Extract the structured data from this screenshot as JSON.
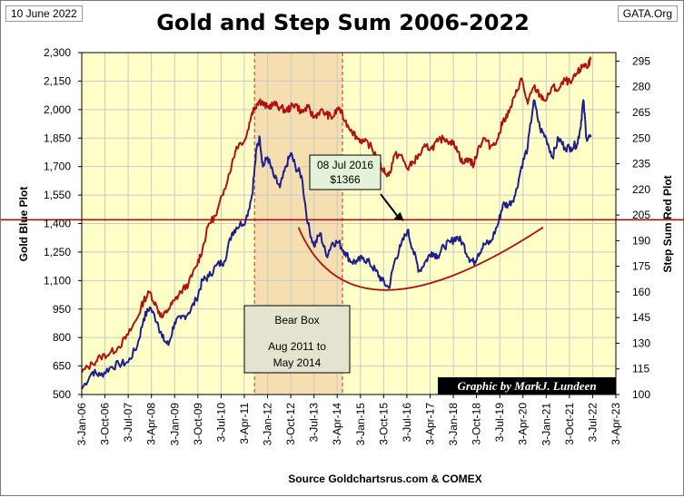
{
  "header": {
    "date": "10 June 2022",
    "site": "GATA.Org",
    "title": "Gold and Step Sum 2006-2022"
  },
  "footer": {
    "source": "Source  Goldchartsrus.com  & COMEX"
  },
  "colors": {
    "plot_bg": "#ffffc8",
    "gold_line": "#1f1f8c",
    "step_sum_line": "#b01010",
    "reference_line": "#b01010",
    "bear_box_fill": "#f5dfb0",
    "annotation_box": "#e3f2d9",
    "credit_bg": "#000000"
  },
  "chart_data": {
    "type": "line",
    "title": "Gold and Step Sum 2006-2022",
    "x_tick_labels": [
      "3-Jan-06",
      "3-Oct-06",
      "3-Jul-07",
      "3-Apr-08",
      "3-Jan-09",
      "3-Oct-09",
      "3-Jul-10",
      "3-Apr-11",
      "3-Jan-12",
      "3-Oct-12",
      "3-Jul-13",
      "3-Apr-14",
      "3-Jan-15",
      "3-Oct-15",
      "3-Jul-16",
      "3-Apr-17",
      "3-Jan-18",
      "3-Oct-18",
      "3-Jul-19",
      "3-Apr-20",
      "3-Jan-21",
      "3-Oct-21",
      "3-Jul-22",
      "3-Apr-23"
    ],
    "x_range": [
      2006.0,
      2023.25
    ],
    "left_axis": {
      "label": "Gold    Blue Plot",
      "ylim": [
        500,
        2300
      ],
      "ticks": [
        "500",
        "650",
        "800",
        "950",
        "1,100",
        "1,250",
        "1,400",
        "1,550",
        "1,700",
        "1,850",
        "2,000",
        "2,150",
        "2,300"
      ]
    },
    "right_axis": {
      "label": "Step Sum     Red Plot",
      "ylim": [
        100,
        300
      ],
      "ticks": [
        "100",
        "115",
        "130",
        "145",
        "160",
        "175",
        "190",
        "205",
        "220",
        "235",
        "250",
        "265",
        "280",
        "295"
      ]
    },
    "grid": true,
    "series": [
      {
        "name": "Gold",
        "axis": "left",
        "x": [
          2006.0,
          2006.35,
          2006.6,
          2006.9,
          2007.2,
          2007.5,
          2007.8,
          2008.0,
          2008.2,
          2008.45,
          2008.6,
          2008.8,
          2009.0,
          2009.2,
          2009.45,
          2009.7,
          2009.9,
          2010.1,
          2010.35,
          2010.6,
          2010.85,
          2011.0,
          2011.3,
          2011.5,
          2011.65,
          2011.75,
          2011.85,
          2012.0,
          2012.2,
          2012.4,
          2012.6,
          2012.75,
          2012.9,
          2013.1,
          2013.3,
          2013.5,
          2013.7,
          2013.9,
          2014.1,
          2014.3,
          2014.5,
          2014.7,
          2014.9,
          2015.1,
          2015.3,
          2015.5,
          2015.7,
          2015.92,
          2016.1,
          2016.3,
          2016.52,
          2016.7,
          2016.9,
          2017.1,
          2017.3,
          2017.5,
          2017.7,
          2017.9,
          2018.1,
          2018.3,
          2018.5,
          2018.66,
          2018.8,
          2019.0,
          2019.2,
          2019.45,
          2019.6,
          2019.8,
          2020.0,
          2020.2,
          2020.4,
          2020.6,
          2020.8,
          2021.0,
          2021.2,
          2021.4,
          2021.6,
          2021.8,
          2022.0,
          2022.1,
          2022.2,
          2022.3,
          2022.44
        ],
        "y": [
          530,
          620,
          600,
          640,
          660,
          670,
          760,
          900,
          960,
          880,
          800,
          760,
          880,
          900,
          930,
          1000,
          1100,
          1120,
          1180,
          1200,
          1350,
          1380,
          1420,
          1550,
          1800,
          1850,
          1700,
          1750,
          1650,
          1590,
          1700,
          1770,
          1700,
          1650,
          1400,
          1280,
          1350,
          1230,
          1300,
          1300,
          1250,
          1200,
          1200,
          1220,
          1190,
          1150,
          1100,
          1060,
          1200,
          1280,
          1366,
          1260,
          1150,
          1200,
          1250,
          1230,
          1280,
          1300,
          1330,
          1300,
          1220,
          1195,
          1240,
          1290,
          1300,
          1400,
          1500,
          1500,
          1550,
          1700,
          1800,
          2050,
          1900,
          1850,
          1750,
          1850,
          1800,
          1800,
          1820,
          1900,
          2050,
          1850,
          1855
        ]
      },
      {
        "name": "Step Sum",
        "axis": "right",
        "x": [
          2006.0,
          2006.35,
          2006.6,
          2006.9,
          2007.2,
          2007.5,
          2007.8,
          2008.0,
          2008.2,
          2008.45,
          2008.6,
          2008.8,
          2009.0,
          2009.2,
          2009.45,
          2009.7,
          2009.9,
          2010.1,
          2010.35,
          2010.6,
          2010.85,
          2011.0,
          2011.3,
          2011.5,
          2011.65,
          2011.75,
          2011.85,
          2012.0,
          2012.2,
          2012.4,
          2012.6,
          2012.75,
          2012.9,
          2013.1,
          2013.3,
          2013.5,
          2013.7,
          2013.9,
          2014.1,
          2014.3,
          2014.5,
          2014.7,
          2014.9,
          2015.1,
          2015.3,
          2015.5,
          2015.7,
          2015.92,
          2016.1,
          2016.3,
          2016.52,
          2016.7,
          2016.9,
          2017.1,
          2017.3,
          2017.5,
          2017.7,
          2017.9,
          2018.1,
          2018.3,
          2018.5,
          2018.66,
          2018.8,
          2019.0,
          2019.2,
          2019.45,
          2019.6,
          2019.8,
          2020.0,
          2020.2,
          2020.4,
          2020.6,
          2020.8,
          2021.0,
          2021.2,
          2021.4,
          2021.6,
          2021.8,
          2022.0,
          2022.1,
          2022.2,
          2022.3,
          2022.44
        ],
        "y": [
          113,
          118,
          122,
          124,
          128,
          135,
          145,
          155,
          160,
          150,
          145,
          150,
          155,
          160,
          165,
          175,
          185,
          200,
          205,
          220,
          235,
          245,
          250,
          265,
          270,
          272,
          270,
          268,
          270,
          268,
          266,
          268,
          270,
          265,
          268,
          262,
          266,
          264,
          262,
          268,
          260,
          255,
          250,
          248,
          246,
          240,
          232,
          228,
          240,
          240,
          232,
          236,
          240,
          245,
          244,
          248,
          250,
          248,
          245,
          235,
          238,
          234,
          244,
          250,
          245,
          250,
          260,
          265,
          275,
          285,
          270,
          280,
          275,
          272,
          280,
          278,
          284,
          282,
          288,
          290,
          293,
          292,
          296
        ]
      }
    ],
    "reference_line": {
      "axis": "left",
      "y": 1420
    },
    "bear_box": {
      "x_start": 2011.58,
      "x_end": 2014.42,
      "line1": "Bear Box",
      "line2": "Aug 2011  to",
      "line3": "May 2014"
    },
    "annotation": {
      "line1": "08 Jul 2016",
      "line2": "$1366",
      "target_x": 2016.52,
      "target_y": 1366
    },
    "trend_curve": {
      "axis": "left",
      "x": [
        2013.0,
        2015.83,
        2020.9
      ],
      "y": [
        1380,
        1050,
        1380
      ]
    },
    "credit": "Graphic by MarkJ. Lundeen"
  }
}
